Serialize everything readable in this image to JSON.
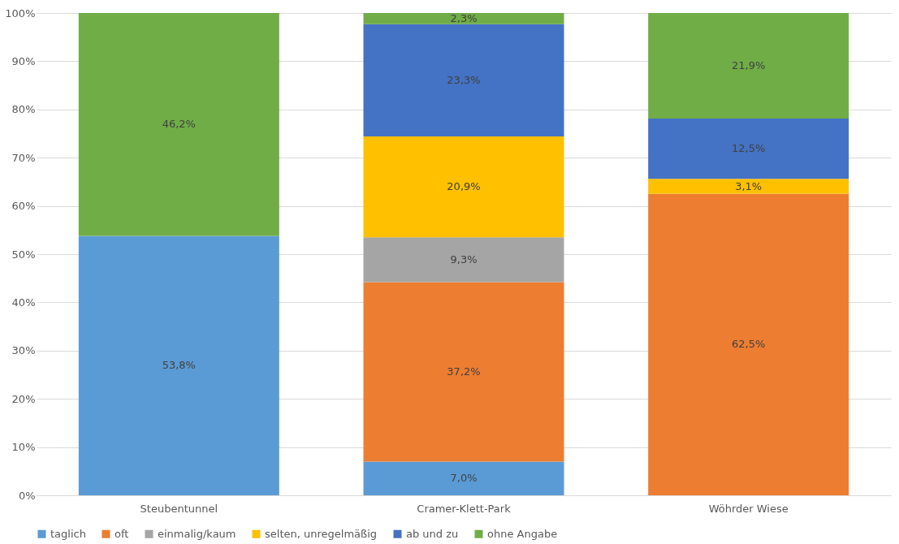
{
  "chart_data": {
    "type": "bar",
    "stacked": true,
    "categories": [
      "Steubentunnel",
      "Cramer-Klett-Park",
      "Wöhrder Wiese"
    ],
    "series": [
      {
        "name": "taglich",
        "color": "#5b9bd5",
        "values": [
          53.8,
          7.0,
          null
        ],
        "value_labels": [
          "53,8%",
          "7,0%",
          null
        ]
      },
      {
        "name": "oft",
        "color": "#ed7d31",
        "values": [
          null,
          37.2,
          62.5
        ],
        "value_labels": [
          null,
          "37,2%",
          "62,5%"
        ]
      },
      {
        "name": "einmalig/kaum",
        "color": "#a5a5a5",
        "values": [
          null,
          9.3,
          null
        ],
        "value_labels": [
          null,
          "9,3%",
          null
        ]
      },
      {
        "name": "selten, unregelmäßig",
        "color": "#ffc000",
        "values": [
          null,
          20.9,
          3.1
        ],
        "value_labels": [
          null,
          "20,9%",
          "3,1%"
        ]
      },
      {
        "name": "ab und zu",
        "color": "#4472c4",
        "values": [
          null,
          23.3,
          12.5
        ],
        "value_labels": [
          null,
          "23,3%",
          "12,5%"
        ]
      },
      {
        "name": "ohne Angabe",
        "color": "#70ad47",
        "values": [
          46.2,
          2.3,
          21.9
        ],
        "value_labels": [
          "46,2%",
          "2,3%",
          "21,9%"
        ]
      }
    ],
    "ylim": [
      0,
      100
    ],
    "yticks": [
      {
        "value": 0,
        "label": "0%"
      },
      {
        "value": 10,
        "label": "10%"
      },
      {
        "value": 20,
        "label": "20%"
      },
      {
        "value": 30,
        "label": "30%"
      },
      {
        "value": 40,
        "label": "40%"
      },
      {
        "value": 50,
        "label": "50%"
      },
      {
        "value": 60,
        "label": "60%"
      },
      {
        "value": 70,
        "label": "70%"
      },
      {
        "value": 80,
        "label": "80%"
      },
      {
        "value": 90,
        "label": "90%"
      },
      {
        "value": 100,
        "label": "100%"
      }
    ],
    "grid": "y",
    "legend": "bottom"
  }
}
